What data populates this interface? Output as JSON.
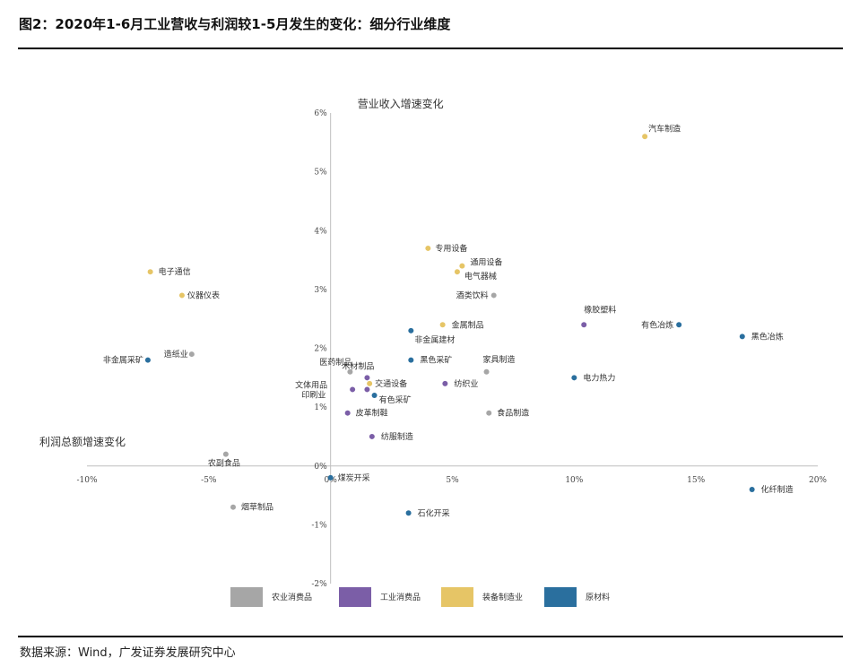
{
  "header": {
    "title": "图2：2020年1-6月工业营收与利润较1-5月发生的变化：细分行业维度"
  },
  "footer": {
    "source": "数据来源：Wind，广发证券发展研究中心"
  },
  "chart_data": {
    "type": "scatter",
    "title": "图2：2020年1-6月工业营收与利润较1-5月发生的变化：细分行业维度",
    "xlabel": "利润总额增速变化",
    "ylabel": "营业收入增速变化",
    "xlim": [
      -10,
      20
    ],
    "ylim": [
      -2,
      6
    ],
    "xticks": [
      -10,
      -5,
      0,
      5,
      10,
      15,
      20
    ],
    "yticks": [
      -2,
      -1,
      0,
      1,
      2,
      3,
      4,
      5,
      6
    ],
    "tick_format": "percent",
    "grid": false,
    "legend_position": "bottom",
    "series_colors": {
      "农业消费品": "#a6a6a6",
      "工业消费品": "#7b5ea7",
      "装备制造业": "#e6c566",
      "原材料": "#2a6f9e"
    },
    "series": [
      {
        "name": "农业消费品",
        "points": [
          {
            "label": "造纸业",
            "x": -5.7,
            "y": 1.9
          },
          {
            "label": "农副食品",
            "x": -4.3,
            "y": 0.2
          },
          {
            "label": "烟草制品",
            "x": -4.0,
            "y": -0.7
          },
          {
            "label": "医药制品",
            "x": 0.8,
            "y": 1.6
          },
          {
            "label": "酒类饮料",
            "x": 6.7,
            "y": 2.9
          },
          {
            "label": "家具制造",
            "x": 6.4,
            "y": 1.6
          },
          {
            "label": "食品制造",
            "x": 6.5,
            "y": 0.9
          }
        ]
      },
      {
        "name": "工业消费品",
        "points": [
          {
            "label": "文体用品",
            "x": 0.9,
            "y": 1.3
          },
          {
            "label": "印刷业",
            "x": 1.5,
            "y": 1.3
          },
          {
            "label": "木材制品",
            "x": 1.5,
            "y": 1.5
          },
          {
            "label": "皮革制鞋",
            "x": 0.7,
            "y": 0.9
          },
          {
            "label": "纺服制造",
            "x": 1.7,
            "y": 0.5
          },
          {
            "label": "纺织业",
            "x": 4.7,
            "y": 1.4
          },
          {
            "label": "橡胶塑料",
            "x": 10.4,
            "y": 2.4
          }
        ]
      },
      {
        "name": "装备制造业",
        "points": [
          {
            "label": "电子通信",
            "x": -7.4,
            "y": 3.3
          },
          {
            "label": "仪器仪表",
            "x": -6.1,
            "y": 2.9
          },
          {
            "label": "交通设备",
            "x": 1.6,
            "y": 1.4
          },
          {
            "label": "专用设备",
            "x": 4.0,
            "y": 3.7
          },
          {
            "label": "通用设备",
            "x": 5.4,
            "y": 3.4
          },
          {
            "label": "电气器械",
            "x": 5.2,
            "y": 3.3
          },
          {
            "label": "金属制品",
            "x": 4.6,
            "y": 2.4
          },
          {
            "label": "汽车制造",
            "x": 12.9,
            "y": 5.6
          }
        ]
      },
      {
        "name": "原材料",
        "points": [
          {
            "label": "非金属采矿",
            "x": -7.5,
            "y": 1.8
          },
          {
            "label": "煤炭开采",
            "x": 0.0,
            "y": -0.2
          },
          {
            "label": "有色采矿",
            "x": 1.8,
            "y": 1.2
          },
          {
            "label": "非金属建材",
            "x": 3.3,
            "y": 2.3
          },
          {
            "label": "黑色采矿",
            "x": 3.3,
            "y": 1.8
          },
          {
            "label": "石化开采",
            "x": 3.2,
            "y": -0.8
          },
          {
            "label": "电力热力",
            "x": 10.0,
            "y": 1.5
          },
          {
            "label": "有色冶炼",
            "x": 14.3,
            "y": 2.4
          },
          {
            "label": "黑色冶炼",
            "x": 16.9,
            "y": 2.2
          },
          {
            "label": "化纤制造",
            "x": 17.3,
            "y": -0.4
          }
        ]
      }
    ]
  }
}
